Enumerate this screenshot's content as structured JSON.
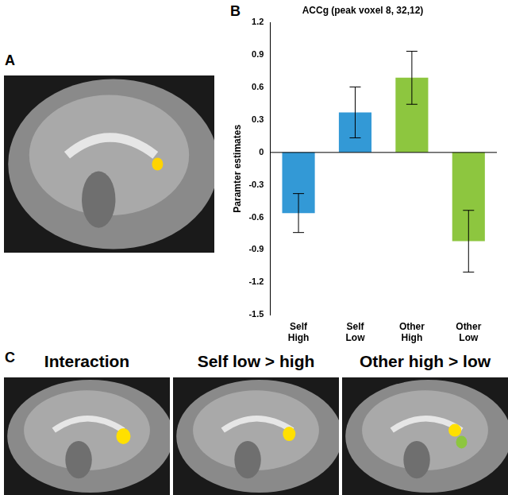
{
  "chart_data": {
    "type": "bar",
    "title": "ACCg (peak voxel 8, 32,12)",
    "y_label": "Paramter estimates",
    "categories": [
      "Self High",
      "Self Low",
      "Other High",
      "Other Low"
    ],
    "values": [
      -0.56,
      0.37,
      0.69,
      -0.82
    ],
    "errors": [
      0.18,
      0.235,
      0.245,
      0.285
    ],
    "colors": [
      "#3399d6",
      "#3399d6",
      "#8dc63f",
      "#8dc63f"
    ],
    "ylim": [
      -1.5,
      1.2
    ],
    "yticks": [
      -1.5,
      -1.2,
      -0.9,
      -0.6,
      -0.3,
      0,
      0.3,
      0.6,
      0.9,
      1.2
    ],
    "grid": false
  },
  "panel_labels": [
    "A",
    "B",
    "C"
  ],
  "panel_c_titles": [
    "Interaction",
    "Self low > high",
    "Other high > low"
  ]
}
